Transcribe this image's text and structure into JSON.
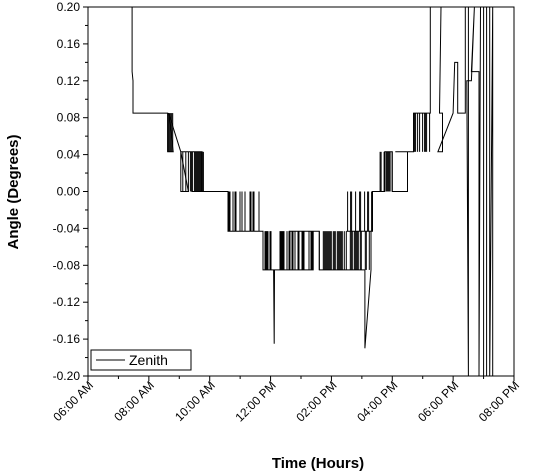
{
  "chart_data": {
    "type": "line",
    "xlabel": "Time (Hours)",
    "ylabel": "Angle (Degrees)",
    "xlim": [
      6,
      20
    ],
    "ylim": [
      -0.2,
      0.2
    ],
    "x_ticks": [
      {
        "value": 6,
        "label": "06:00 AM"
      },
      {
        "value": 8,
        "label": "08:00 AM"
      },
      {
        "value": 10,
        "label": "10:00 AM"
      },
      {
        "value": 12,
        "label": "12:00 PM"
      },
      {
        "value": 14,
        "label": "02:00 PM"
      },
      {
        "value": 16,
        "label": "04:00 PM"
      },
      {
        "value": 18,
        "label": "06:00 PM"
      },
      {
        "value": 20,
        "label": "08:00 PM"
      }
    ],
    "y_ticks": [
      {
        "value": 0.2,
        "label": "0.20"
      },
      {
        "value": 0.16,
        "label": "0.16"
      },
      {
        "value": 0.12,
        "label": "0.12"
      },
      {
        "value": 0.08,
        "label": "0.08"
      },
      {
        "value": 0.04,
        "label": "0.04"
      },
      {
        "value": 0.0,
        "label": "0.00"
      },
      {
        "value": -0.04,
        "label": "-0.04"
      },
      {
        "value": -0.08,
        "label": "-0.08"
      },
      {
        "value": -0.12,
        "label": "-0.12"
      },
      {
        "value": -0.16,
        "label": "-0.16"
      },
      {
        "value": -0.2,
        "label": "-0.20"
      }
    ],
    "grid": false,
    "legend_position": "bottom-left",
    "series": [
      {
        "name": "Zenith",
        "color": "#000000",
        "x": [
          7.45,
          7.45,
          7.48,
          7.48,
          7.5,
          8.62,
          8.62,
          8.8,
          8.65,
          9.05,
          9.05,
          9.3,
          9.05,
          9.75,
          9.75,
          9.4,
          9.8,
          10.6,
          10.6,
          11.7,
          10.6,
          11.75,
          11.75,
          12.1,
          12.12,
          12.13,
          13.4,
          13.4,
          12.6,
          13.6,
          13.6,
          14.4,
          15.1,
          15.1,
          15.3,
          15.3,
          14.5,
          15.35,
          15.35,
          15.6,
          15.75,
          15.75,
          16.0,
          16.0,
          16.5,
          16.5,
          16.1,
          16.7,
          16.7,
          17.25,
          17.25,
          17.6,
          17.55,
          17.65,
          17.65,
          17.5,
          18.0,
          18.05,
          18.15,
          18.15,
          18.4,
          18.4,
          18.5,
          18.5,
          18.45,
          18.6,
          18.7,
          18.6,
          18.85,
          18.85,
          18.9,
          19.0,
          19.0,
          19.1,
          19.1,
          19.2,
          19.2,
          19.3,
          19.3
        ],
        "y": [
          0.2,
          0.13,
          0.12,
          0.085,
          0.085,
          0.085,
          0.043,
          0.043,
          0.085,
          0.043,
          0.0,
          0.0,
          0.043,
          0.043,
          0.0,
          0.0,
          0.0,
          0.0,
          -0.043,
          -0.043,
          -0.043,
          -0.043,
          -0.085,
          -0.085,
          -0.165,
          -0.085,
          -0.085,
          -0.043,
          -0.043,
          -0.043,
          -0.085,
          -0.085,
          -0.085,
          -0.17,
          -0.085,
          -0.043,
          -0.043,
          -0.043,
          0.0,
          0.0,
          0.0,
          0.043,
          0.043,
          0.0,
          0.0,
          0.043,
          0.043,
          0.043,
          0.085,
          0.085,
          0.2,
          0.2,
          0.085,
          0.085,
          0.043,
          0.043,
          0.085,
          0.14,
          0.14,
          0.085,
          0.085,
          0.2,
          0.2,
          -0.2,
          0.12,
          0.12,
          0.2,
          0.13,
          0.13,
          -0.2,
          0.2,
          0.2,
          -0.2,
          -0.2,
          0.2,
          0.2,
          -0.2,
          0.2,
          -0.2
        ]
      }
    ],
    "annotations": []
  },
  "legend": {
    "label": "Zenith"
  }
}
